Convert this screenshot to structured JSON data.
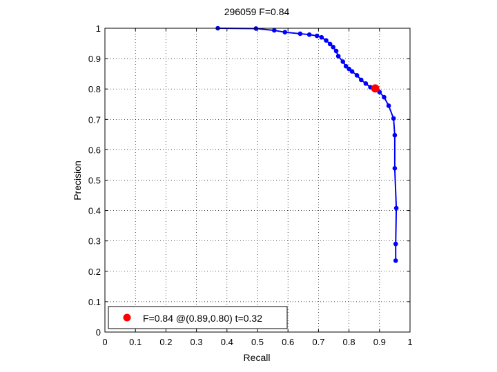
{
  "chart_data": {
    "type": "line",
    "title": "296059 F=0.84",
    "xlabel": "Recall",
    "ylabel": "Precision",
    "xlim": [
      0,
      1
    ],
    "ylim": [
      0,
      1
    ],
    "grid": true,
    "legend_position": "bottom-left",
    "xticks": [
      "0",
      "0.1",
      "0.2",
      "0.3",
      "0.4",
      "0.5",
      "0.6",
      "0.7",
      "0.8",
      "0.9",
      "1"
    ],
    "yticks": [
      "0",
      "0.1",
      "0.2",
      "0.3",
      "0.4",
      "0.5",
      "0.6",
      "0.7",
      "0.8",
      "0.9",
      "1"
    ],
    "series": [
      {
        "color": "#0000ff",
        "points": [
          [
            0.37,
            1.0
          ],
          [
            0.495,
            0.999
          ],
          [
            0.555,
            0.993
          ],
          [
            0.59,
            0.987
          ],
          [
            0.64,
            0.982
          ],
          [
            0.67,
            0.979
          ],
          [
            0.695,
            0.975
          ],
          [
            0.71,
            0.97
          ],
          [
            0.725,
            0.96
          ],
          [
            0.738,
            0.948
          ],
          [
            0.748,
            0.938
          ],
          [
            0.758,
            0.925
          ],
          [
            0.765,
            0.908
          ],
          [
            0.78,
            0.89
          ],
          [
            0.79,
            0.875
          ],
          [
            0.8,
            0.866
          ],
          [
            0.81,
            0.858
          ],
          [
            0.826,
            0.845
          ],
          [
            0.84,
            0.83
          ],
          [
            0.855,
            0.818
          ],
          [
            0.87,
            0.806
          ],
          [
            0.9,
            0.79
          ],
          [
            0.915,
            0.773
          ],
          [
            0.93,
            0.745
          ],
          [
            0.946,
            0.703
          ],
          [
            0.95,
            0.648
          ],
          [
            0.95,
            0.539
          ],
          [
            0.955,
            0.408
          ],
          [
            0.953,
            0.29
          ],
          [
            0.953,
            0.235
          ]
        ]
      }
    ],
    "best_point": {
      "x": 0.886,
      "y": 0.802,
      "color": "#ff0000",
      "legend_label": "F=0.84 @(0.89,0.80) t=0.32"
    }
  }
}
